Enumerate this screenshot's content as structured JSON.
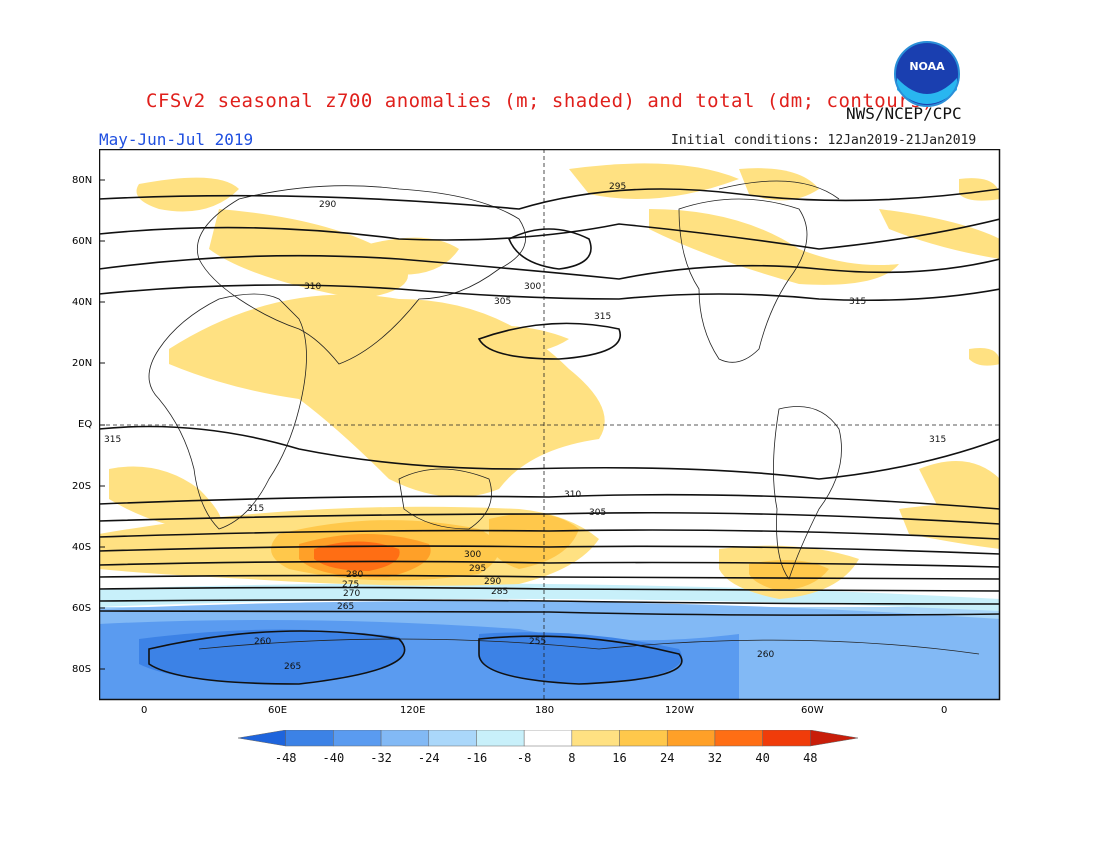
{
  "header": {
    "title": "CFSv2 seasonal z700 anomalies (m; shaded) and total (dm; contours)",
    "agency": "NWS/NCEP/CPC",
    "season": "May-Jun-Jul 2019",
    "initial_conditions": "Initial conditions: 12Jan2019-21Jan2019",
    "logo_text": "NOAA"
  },
  "map": {
    "lat_labels": [
      "80N",
      "60N",
      "40N",
      "20N",
      "EQ",
      "20S",
      "40S",
      "60S",
      "80S"
    ],
    "lon_labels": [
      "0",
      "60E",
      "120E",
      "180",
      "120W",
      "60W",
      "0"
    ],
    "contour_labels": [
      "290",
      "295",
      "300",
      "305",
      "310",
      "315",
      "315",
      "310",
      "305",
      "300",
      "295",
      "290",
      "285",
      "280",
      "275",
      "270",
      "265",
      "260",
      "255",
      "260",
      "265",
      "315",
      "315",
      "315"
    ]
  },
  "colorbar": {
    "labels": [
      "-48",
      "-40",
      "-32",
      "-24",
      "-16",
      "-8",
      "8",
      "16",
      "24",
      "32",
      "40",
      "48"
    ],
    "colors": [
      "#1e64dc",
      "#3c82e6",
      "#5a9bf0",
      "#82b9f5",
      "#aad7fa",
      "#c8f0fa",
      "#ffffff",
      "#ffe182",
      "#ffc84b",
      "#ffa028",
      "#ff6e14",
      "#f03c0a",
      "#c81e0a"
    ]
  },
  "chart_data": {
    "type": "heatmap",
    "title": "CFSv2 seasonal z700 anomalies (m; shaded) and total (dm; contours)",
    "subtitle": "May-Jun-Jul 2019",
    "colorbar_levels": [
      -48,
      -40,
      -32,
      -24,
      -16,
      -8,
      8,
      16,
      24,
      32,
      40,
      48
    ],
    "contour_levels_dm": [
      255,
      260,
      265,
      270,
      275,
      280,
      285,
      290,
      295,
      300,
      305,
      310,
      315
    ],
    "lat_ticks": [
      "80N",
      "60N",
      "40N",
      "20N",
      "EQ",
      "20S",
      "40S",
      "60S",
      "80S"
    ],
    "lon_ticks": [
      "0",
      "60E",
      "120E",
      "180",
      "120W",
      "60W",
      "0"
    ]
  }
}
